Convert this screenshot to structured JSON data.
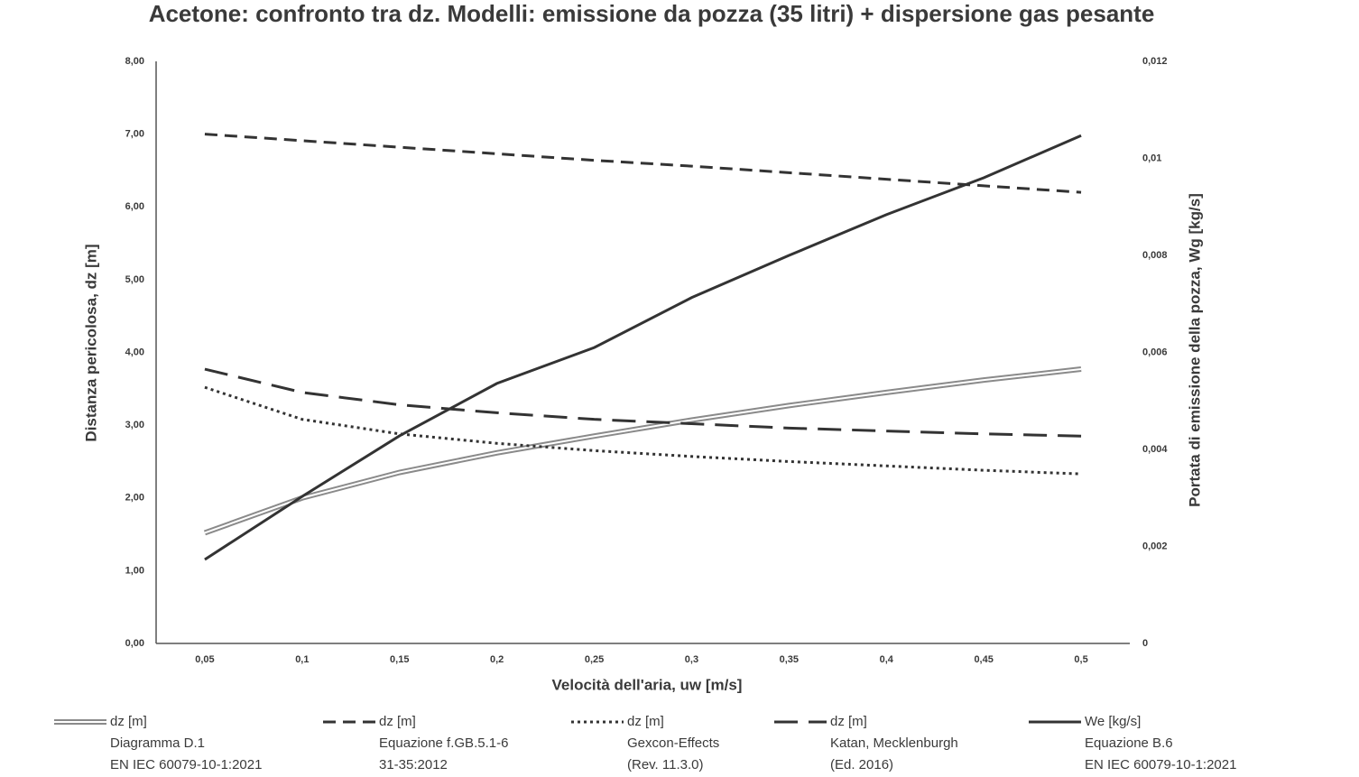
{
  "chart_data": {
    "type": "line",
    "title": "Acetone: confronto tra dz. Modelli: emissione da pozza (35 litri) + dispersione gas pesante",
    "x_label": "Velocità dell'aria, uw [m/s]",
    "y_label": "Distanza pericolosa, dz [m]",
    "y2_label": "Portata di emissione della pozza, Wg [kg/s]",
    "categories": [
      "0,05",
      "0,1",
      "0,15",
      "0,2",
      "0,25",
      "0,3",
      "0,35",
      "0,4",
      "0,45",
      "0,5"
    ],
    "ylim": [
      0,
      8
    ],
    "yticks": [
      {
        "value": 0,
        "label": "0,00"
      },
      {
        "value": 1,
        "label": "1,00"
      },
      {
        "value": 2,
        "label": "2,00"
      },
      {
        "value": 3,
        "label": "3,00"
      },
      {
        "value": 4,
        "label": "4,00"
      },
      {
        "value": 5,
        "label": "5,00"
      },
      {
        "value": 6,
        "label": "6,00"
      },
      {
        "value": 7,
        "label": "7,00"
      },
      {
        "value": 8,
        "label": "8,00"
      }
    ],
    "y2lim": [
      0,
      0.012
    ],
    "y2ticks": [
      0,
      {
        "value": 0.002,
        "label": "0,002"
      },
      {
        "value": 0.004,
        "label": "0,004"
      },
      {
        "value": 0.006,
        "label": "0,006"
      },
      {
        "value": 0.008,
        "label": "0,008"
      },
      {
        "value": 0.01,
        "label": "0,01"
      },
      {
        "value": 0.012,
        "label": "0,012"
      }
    ],
    "grid": false,
    "series": [
      {
        "name": "dz [m]",
        "source": [
          "Diagramma D.1",
          "EN IEC 60079-10-1:2021"
        ],
        "color": "#8a8a8a",
        "style": "double",
        "values": [
          1.52,
          2.0,
          2.35,
          2.62,
          2.85,
          3.07,
          3.27,
          3.45,
          3.62,
          3.77
        ]
      },
      {
        "name": "dz [m]",
        "source": [
          "Equazione f.GB.5.1-6",
          "31-35:2012"
        ],
        "color": "#333333",
        "style": "dash",
        "values": [
          7.0,
          6.91,
          6.82,
          6.73,
          6.64,
          6.56,
          6.47,
          6.38,
          6.29,
          6.2
        ]
      },
      {
        "name": "dz [m]",
        "source": [
          "Gexcon-Effects",
          "(Rev. 11.3.0)"
        ],
        "color": "#333333",
        "style": "dot",
        "values": [
          3.52,
          3.08,
          2.88,
          2.75,
          2.65,
          2.57,
          2.5,
          2.44,
          2.38,
          2.33
        ]
      },
      {
        "name": "dz [m]",
        "source": [
          "Katan, Mecklenburgh",
          "(Ed. 2016)"
        ],
        "color": "#333333",
        "style": "longdash",
        "values": [
          3.77,
          3.45,
          3.28,
          3.17,
          3.08,
          3.02,
          2.96,
          2.92,
          2.88,
          2.85
        ]
      },
      {
        "name": "We [kg/s]",
        "source": [
          "Equazione B.6",
          "EN IEC 60079-10-1:2021"
        ],
        "color": "#333333",
        "style": "solid",
        "axis": "y2",
        "values": [
          0.00173,
          0.00303,
          0.00428,
          0.00536,
          0.0061,
          0.00713,
          0.008,
          0.00884,
          0.0096,
          0.01047
        ]
      }
    ]
  }
}
